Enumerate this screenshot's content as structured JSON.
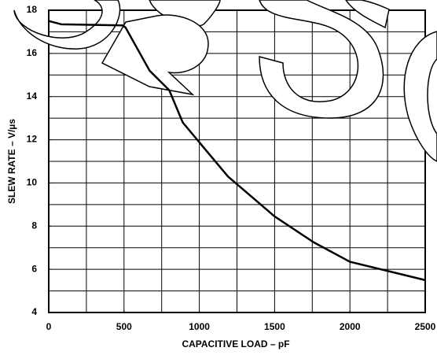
{
  "chart_data": {
    "type": "line",
    "x_label": "CAPACITIVE LOAD – pF",
    "y_label": "SLEW RATE – V/µs",
    "x": [
      0,
      83,
      490,
      510,
      670,
      800,
      890,
      1190,
      1500,
      1760,
      2000,
      2500
    ],
    "values": [
      17.5,
      17.35,
      17.3,
      17.2,
      15.2,
      14.3,
      12.8,
      10.3,
      8.45,
      7.25,
      6.35,
      5.5
    ],
    "color": "#000000",
    "xlim": [
      0,
      2500
    ],
    "xticks": [
      0,
      500,
      1000,
      1500,
      2000,
      2500
    ],
    "ylim": [
      4,
      18
    ],
    "yticks": [
      4,
      6,
      8,
      10,
      12,
      14,
      16,
      18
    ],
    "xgrid": [
      250,
      500,
      750,
      1000,
      1250,
      1500,
      1750,
      2000,
      2250
    ],
    "ygrid": [
      5,
      6,
      7,
      8,
      9,
      10,
      11,
      12,
      13,
      14,
      15,
      16,
      17
    ]
  }
}
